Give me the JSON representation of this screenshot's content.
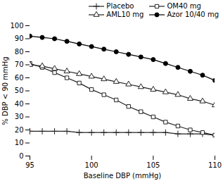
{
  "chart_data": {
    "type": "line",
    "xlabel": "Baseline DBP (mmHg)",
    "ylabel": "% DBP < 90 mmHg",
    "x": [
      95,
      96,
      97,
      98,
      99,
      100,
      101,
      102,
      103,
      104,
      105,
      106,
      107,
      108,
      109,
      110
    ],
    "series": [
      {
        "name": "Placebo",
        "color": "#222222",
        "marker": "plus",
        "values": [
          19,
          19,
          19,
          19,
          18,
          18,
          18,
          18,
          18,
          18,
          18,
          18,
          17,
          17,
          17,
          16
        ]
      },
      {
        "name": "OM40 mg",
        "color": "#222222",
        "marker": "square",
        "values": [
          71,
          68,
          64,
          60,
          56,
          51,
          47,
          43,
          38,
          34,
          30,
          26,
          23,
          20,
          18,
          16
        ]
      },
      {
        "name": "AML10 mg",
        "color": "#222222",
        "marker": "triangle",
        "values": [
          70,
          69,
          67,
          65,
          63,
          61,
          59,
          57,
          55,
          53,
          51,
          49,
          47,
          44,
          42,
          39
        ]
      },
      {
        "name": "Azor 10/40 mg",
        "color": "#000000",
        "marker": "circle",
        "values": [
          92,
          91,
          90,
          88,
          86,
          84,
          82,
          80,
          78,
          76,
          74,
          71,
          68,
          65,
          62,
          58
        ]
      }
    ],
    "xlim": [
      95,
      110
    ],
    "ylim": [
      0,
      100
    ],
    "xticks": [
      95,
      100,
      105,
      110
    ],
    "yticks": [
      0,
      10,
      20,
      30,
      40,
      50,
      60,
      70,
      80,
      90,
      100
    ],
    "grid": false,
    "legend": "upper right"
  }
}
